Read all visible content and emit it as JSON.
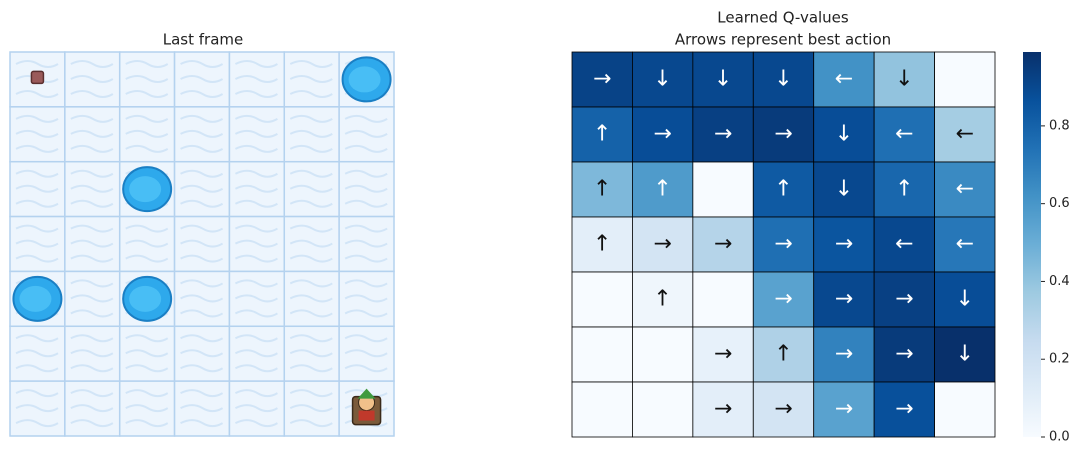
{
  "chart_data": [
    {
      "type": "image",
      "title": "Last frame"
    },
    {
      "type": "heatmap",
      "title": "Learned Q-values",
      "subtitle": "Arrows represent best action",
      "values": [
        [
          0.92,
          0.9,
          0.9,
          0.9,
          0.62,
          0.4,
          0.0
        ],
        [
          0.8,
          0.88,
          0.93,
          0.95,
          0.88,
          0.75,
          0.35
        ],
        [
          0.45,
          0.58,
          0.0,
          0.83,
          0.9,
          0.78,
          0.65
        ],
        [
          0.1,
          0.18,
          0.3,
          0.75,
          0.85,
          0.9,
          0.72
        ],
        [
          0.0,
          0.04,
          0.0,
          0.55,
          0.9,
          0.93,
          0.88
        ],
        [
          0.0,
          0.0,
          0.08,
          0.32,
          0.68,
          0.95,
          0.99
        ],
        [
          0.0,
          0.0,
          0.1,
          0.18,
          0.55,
          0.87,
          0.0
        ]
      ],
      "annotations": [
        [
          "→",
          "↓",
          "↓",
          "↓",
          "←",
          "↓",
          null
        ],
        [
          "↑",
          "→",
          "→",
          "→",
          "↓",
          "←",
          "←"
        ],
        [
          "↑",
          "↑",
          null,
          "↑",
          "↓",
          "↑",
          "←"
        ],
        [
          "↑",
          "→",
          "→",
          "→",
          "→",
          "←",
          "←"
        ],
        [
          null,
          "↑",
          null,
          "→",
          "→",
          "→",
          "↓"
        ],
        [
          null,
          null,
          "→",
          "↑",
          "→",
          "→",
          "↓"
        ],
        [
          null,
          null,
          "→",
          "→",
          "→",
          "→",
          null
        ]
      ],
      "colormap": "Blues",
      "clim": [
        0,
        0.99
      ],
      "colorbar_ticks": [
        {
          "value": 0,
          "label": "0.0"
        },
        {
          "value": 0.2,
          "label": "0.2"
        },
        {
          "value": 0.4,
          "label": "0.4"
        },
        {
          "value": 0.6,
          "label": "0.6"
        },
        {
          "value": 0.8,
          "label": "0.8"
        }
      ]
    }
  ]
}
